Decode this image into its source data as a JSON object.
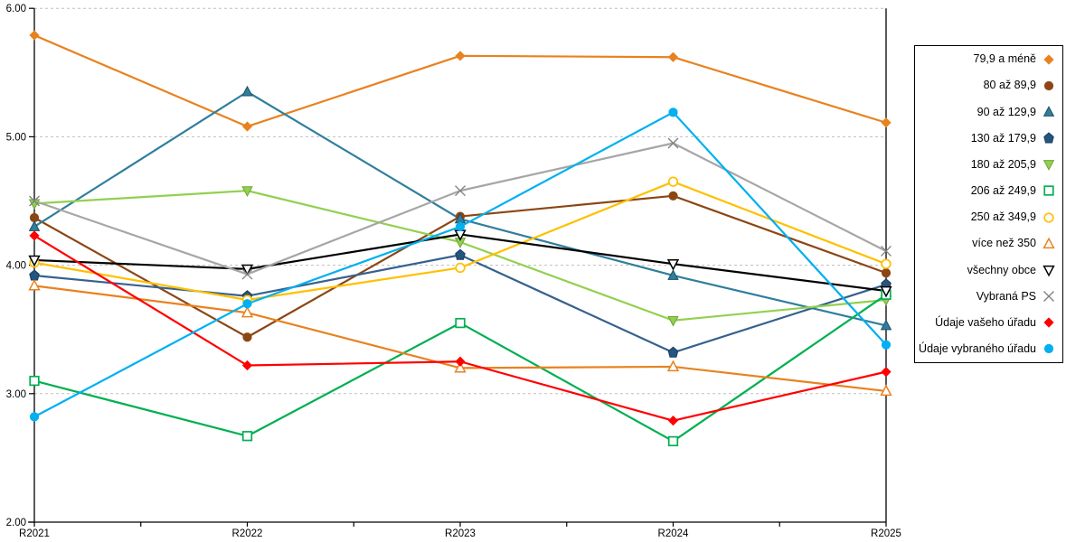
{
  "chart_data": {
    "type": "line",
    "title": "",
    "xlabel": "",
    "ylabel": "",
    "categories": [
      "R2021",
      "R2022",
      "R2023",
      "R2024",
      "R2025"
    ],
    "ylim": [
      2.0,
      6.0
    ],
    "ytick_labels": [
      "2.00",
      "3.00",
      "4.00",
      "5.00",
      "6.00"
    ],
    "grid": "horizontal-dashed",
    "legend_position": "right",
    "series": [
      {
        "name": "79,9 a méně",
        "color": "#E8821F",
        "marker": "diamond",
        "values": [
          5.79,
          5.08,
          5.63,
          5.62,
          5.11
        ]
      },
      {
        "name": "80 až 89,9",
        "color": "#8C4613",
        "marker": "circle",
        "values": [
          4.37,
          3.44,
          4.38,
          4.54,
          3.94
        ]
      },
      {
        "name": "90 až 129,9",
        "color": "#2E7F9C",
        "marker": "triangle-up",
        "marker_edge": "#1F4E66",
        "values": [
          4.3,
          5.35,
          4.36,
          3.92,
          3.53
        ]
      },
      {
        "name": "130 až 179,9",
        "color": "#36618E",
        "marker": "pentagon",
        "marker_color": "#24557E",
        "marker_edge": "#1A3A5C",
        "values": [
          3.92,
          3.76,
          4.08,
          3.32,
          3.85
        ]
      },
      {
        "name": "180 až 205,9",
        "color": "#92D050",
        "marker": "triangle-down",
        "marker_edge": "#6FA33A",
        "values": [
          4.48,
          4.58,
          4.18,
          3.57,
          3.73
        ]
      },
      {
        "name": "206 až 249,9",
        "color": "#00B050",
        "marker": "square-open",
        "values": [
          3.1,
          2.67,
          3.55,
          2.63,
          3.77
        ]
      },
      {
        "name": "250 až 349,9",
        "color": "#FFC000",
        "marker": "circle-open",
        "values": [
          4.02,
          3.73,
          3.98,
          4.65,
          4.01
        ]
      },
      {
        "name": "více než 350",
        "color": "#E8821F",
        "marker": "triangle-up-open",
        "values": [
          3.84,
          3.63,
          3.2,
          3.21,
          3.02
        ]
      },
      {
        "name": "všechny obce",
        "color": "#000000",
        "marker": "triangle-down-open",
        "values": [
          4.04,
          3.97,
          4.24,
          4.01,
          3.8
        ]
      },
      {
        "name": "Vybraná PS",
        "color": "#A6A6A6",
        "marker": "x-mark",
        "marker_color": "#808080",
        "values": [
          4.5,
          3.93,
          4.58,
          4.95,
          4.11
        ]
      },
      {
        "name": "Údaje vašeho úřadu",
        "color": "#FF0000",
        "marker": "diamond",
        "values": [
          4.23,
          3.22,
          3.25,
          2.79,
          3.17
        ]
      },
      {
        "name": "Údaje vybraného úřadu",
        "color": "#00B0F0",
        "marker": "circle",
        "values": [
          2.82,
          3.7,
          4.3,
          5.19,
          3.38
        ]
      }
    ],
    "axis_color": "#000000",
    "gridline_color": "#BFBFBF",
    "background_color": "#FFFFFF"
  }
}
